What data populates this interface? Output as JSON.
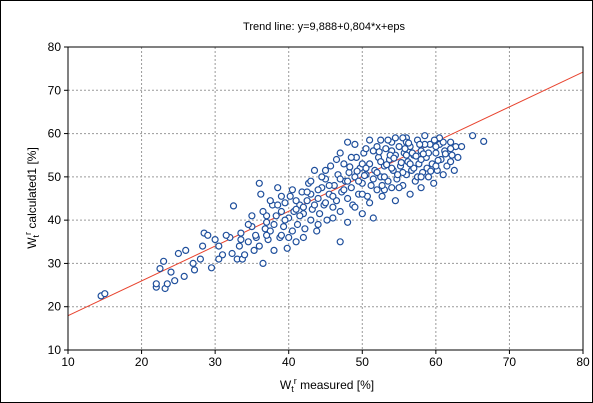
{
  "chart_data": {
    "type": "scatter",
    "title": "Trend line: y=9,888+0,804*x+eps",
    "xlabel": {
      "main": "W",
      "sub": "t",
      "sup": "r",
      "rest": " measured [%]"
    },
    "ylabel": {
      "main": "W",
      "sub": "t",
      "sup": "r",
      "rest": " calculated1 [%]"
    },
    "xlim": [
      10,
      80
    ],
    "ylim": [
      10,
      80
    ],
    "xticks": [
      "10",
      "20",
      "30",
      "40",
      "50",
      "60",
      "70",
      "80"
    ],
    "yticks": [
      "10",
      "20",
      "30",
      "40",
      "50",
      "60",
      "70",
      "80"
    ],
    "grid": true,
    "legend": "none",
    "trend_line": {
      "intercept": 9.888,
      "slope": 0.804,
      "color": "#e8432e"
    },
    "marker_color": "#1f4f9c",
    "series": [
      {
        "points": [
          [
            14.5,
            22.5
          ],
          [
            15.0,
            23.0
          ],
          [
            22.0,
            24.5
          ],
          [
            22.0,
            25.3
          ],
          [
            22.5,
            28.8
          ],
          [
            23.0,
            30.5
          ],
          [
            23.2,
            24.2
          ],
          [
            23.5,
            25.3
          ],
          [
            24.0,
            28.0
          ],
          [
            24.5,
            26.0
          ],
          [
            25.0,
            32.3
          ],
          [
            25.8,
            27.0
          ],
          [
            26.0,
            33.0
          ],
          [
            27.0,
            30.0
          ],
          [
            27.2,
            28.5
          ],
          [
            28.0,
            31.0
          ],
          [
            28.3,
            34.0
          ],
          [
            28.5,
            37.0
          ],
          [
            29.0,
            36.5
          ],
          [
            29.5,
            29.0
          ],
          [
            30.0,
            35.5
          ],
          [
            30.5,
            34.0
          ],
          [
            31.0,
            32.0
          ],
          [
            32.0,
            36.0
          ],
          [
            32.3,
            32.3
          ],
          [
            32.5,
            43.3
          ],
          [
            33.0,
            31.0
          ],
          [
            33.3,
            34.0
          ],
          [
            33.5,
            37.0
          ],
          [
            33.7,
            31.0
          ],
          [
            34.0,
            32.0
          ],
          [
            34.5,
            35.0
          ],
          [
            35.0,
            38.5
          ],
          [
            35.3,
            33.0
          ],
          [
            35.6,
            36.0
          ],
          [
            36.0,
            48.5
          ],
          [
            36.2,
            46.0
          ],
          [
            36.5,
            30.0
          ],
          [
            36.8,
            38.0
          ],
          [
            37.0,
            41.0
          ],
          [
            37.2,
            35.5
          ],
          [
            37.5,
            37.5
          ],
          [
            37.8,
            43.5
          ],
          [
            38.0,
            39.0
          ],
          [
            38.3,
            41.0
          ],
          [
            38.5,
            47.5
          ],
          [
            38.8,
            36.0
          ],
          [
            39.0,
            42.0
          ],
          [
            39.3,
            38.5
          ],
          [
            39.5,
            44.0
          ],
          [
            39.8,
            33.5
          ],
          [
            40.0,
            40.5
          ],
          [
            40.2,
            45.5
          ],
          [
            40.5,
            37.5
          ],
          [
            40.7,
            42.0
          ],
          [
            41.0,
            35.0
          ],
          [
            41.2,
            39.0
          ],
          [
            41.5,
            43.5
          ],
          [
            41.8,
            46.5
          ],
          [
            42.0,
            41.5
          ],
          [
            42.2,
            38.0
          ],
          [
            42.5,
            44.5
          ],
          [
            42.7,
            48.5
          ],
          [
            43.0,
            40.0
          ],
          [
            43.2,
            42.5
          ],
          [
            43.5,
            51.5
          ],
          [
            43.8,
            37.5
          ],
          [
            44.0,
            45.0
          ],
          [
            44.2,
            41.5
          ],
          [
            44.5,
            47.5
          ],
          [
            44.8,
            43.5
          ],
          [
            45.0,
            49.5
          ],
          [
            45.2,
            40.0
          ],
          [
            45.5,
            46.0
          ],
          [
            45.7,
            52.5
          ],
          [
            46.0,
            43.0
          ],
          [
            46.2,
            48.0
          ],
          [
            46.5,
            44.5
          ],
          [
            46.7,
            50.5
          ],
          [
            47.0,
            35.0
          ],
          [
            47.0,
            42.0
          ],
          [
            47.2,
            46.5
          ],
          [
            47.5,
            53.0
          ],
          [
            47.7,
            49.0
          ],
          [
            48.0,
            45.0
          ],
          [
            48.0,
            58.0
          ],
          [
            48.2,
            51.0
          ],
          [
            48.5,
            47.5
          ],
          [
            48.7,
            43.5
          ],
          [
            49.0,
            50.0
          ],
          [
            49.2,
            54.5
          ],
          [
            49.5,
            46.0
          ],
          [
            49.7,
            52.0
          ],
          [
            50.0,
            48.5
          ],
          [
            50.0,
            41.5
          ],
          [
            50.2,
            55.5
          ],
          [
            50.5,
            50.5
          ],
          [
            50.7,
            45.5
          ],
          [
            51.0,
            53.0
          ],
          [
            51.2,
            48.0
          ],
          [
            51.5,
            56.0
          ],
          [
            51.5,
            40.5
          ],
          [
            51.7,
            51.5
          ],
          [
            52.0,
            47.0
          ],
          [
            52.2,
            54.5
          ],
          [
            52.5,
            58.5
          ],
          [
            52.5,
            50.0
          ],
          [
            52.7,
            45.5
          ],
          [
            53.0,
            52.5
          ],
          [
            53.2,
            56.5
          ],
          [
            53.5,
            49.0
          ],
          [
            53.7,
            54.0
          ],
          [
            54.0,
            47.5
          ],
          [
            54.0,
            58.0
          ],
          [
            54.2,
            51.5
          ],
          [
            54.5,
            55.0
          ],
          [
            54.5,
            44.5
          ],
          [
            54.7,
            49.5
          ],
          [
            55.0,
            57.0
          ],
          [
            55.2,
            52.5
          ],
          [
            55.5,
            48.0
          ],
          [
            55.7,
            55.5
          ],
          [
            56.0,
            59.0
          ],
          [
            56.0,
            50.5
          ],
          [
            56.2,
            53.5
          ],
          [
            56.5,
            46.0
          ],
          [
            56.5,
            57.0
          ],
          [
            56.7,
            51.5
          ],
          [
            57.0,
            55.0
          ],
          [
            57.2,
            49.0
          ],
          [
            57.5,
            58.5
          ],
          [
            57.7,
            53.0
          ],
          [
            58.0,
            47.5
          ],
          [
            58.0,
            56.0
          ],
          [
            58.2,
            51.0
          ],
          [
            58.5,
            59.5
          ],
          [
            58.7,
            54.5
          ],
          [
            59.0,
            50.0
          ],
          [
            59.2,
            57.5
          ],
          [
            59.5,
            53.0
          ],
          [
            59.7,
            48.5
          ],
          [
            60.0,
            55.5
          ],
          [
            60.2,
            51.5
          ],
          [
            60.5,
            57.5
          ],
          [
            60.7,
            54.0
          ],
          [
            61.0,
            50.5
          ],
          [
            61.2,
            56.0
          ],
          [
            61.5,
            52.5
          ],
          [
            62.0,
            58.0
          ],
          [
            62.2,
            55.0
          ],
          [
            62.5,
            51.5
          ],
          [
            62.7,
            57.0
          ],
          [
            63.0,
            54.5
          ],
          [
            63.5,
            57.0
          ],
          [
            65.0,
            59.5
          ],
          [
            66.5,
            58.2
          ],
          [
            36.0,
            34.0
          ],
          [
            37.0,
            39.5
          ],
          [
            38.0,
            33.0
          ],
          [
            39.0,
            45.5
          ],
          [
            40.0,
            36.0
          ],
          [
            41.0,
            44.5
          ],
          [
            42.0,
            36.0
          ],
          [
            43.0,
            46.0
          ],
          [
            44.0,
            39.0
          ],
          [
            45.0,
            44.0
          ],
          [
            46.0,
            40.5
          ],
          [
            47.0,
            49.5
          ],
          [
            48.0,
            39.5
          ],
          [
            49.0,
            43.0
          ],
          [
            50.0,
            53.0
          ],
          [
            51.0,
            44.0
          ],
          [
            52.0,
            57.0
          ],
          [
            53.0,
            47.0
          ],
          [
            54.0,
            52.0
          ],
          [
            55.0,
            47.5
          ],
          [
            56.0,
            55.0
          ],
          [
            57.0,
            52.0
          ],
          [
            58.0,
            54.0
          ],
          [
            59.0,
            55.5
          ],
          [
            60.0,
            52.5
          ],
          [
            61.0,
            58.0
          ],
          [
            62.0,
            53.5
          ],
          [
            55.5,
            59.0
          ],
          [
            53.5,
            58.5
          ],
          [
            51.0,
            58.5
          ],
          [
            46.5,
            54.0
          ],
          [
            44.5,
            50.0
          ],
          [
            42.5,
            46.5
          ],
          [
            40.5,
            47.0
          ],
          [
            38.5,
            43.5
          ],
          [
            36.5,
            42.0
          ],
          [
            34.5,
            39.0
          ],
          [
            31.5,
            36.5
          ],
          [
            30.5,
            31.0
          ],
          [
            48.5,
            54.5
          ],
          [
            50.5,
            56.5
          ],
          [
            52.5,
            53.5
          ],
          [
            54.5,
            59.0
          ],
          [
            56.5,
            53.0
          ],
          [
            58.5,
            57.5
          ],
          [
            60.5,
            59.0
          ],
          [
            57.5,
            50.0
          ],
          [
            55.5,
            51.0
          ],
          [
            53.0,
            50.0
          ],
          [
            49.5,
            49.0
          ],
          [
            47.5,
            47.0
          ],
          [
            45.5,
            48.0
          ],
          [
            43.5,
            43.5
          ],
          [
            41.5,
            41.0
          ],
          [
            39.5,
            40.0
          ],
          [
            37.5,
            44.5
          ],
          [
            35.5,
            36.5
          ],
          [
            33.5,
            35.5
          ],
          [
            42.0,
            43.0
          ],
          [
            44.0,
            47.0
          ],
          [
            46.0,
            45.5
          ],
          [
            48.0,
            49.0
          ],
          [
            50.0,
            46.0
          ],
          [
            52.0,
            51.0
          ],
          [
            54.0,
            56.0
          ],
          [
            56.0,
            58.0
          ],
          [
            58.0,
            50.0
          ],
          [
            60.0,
            57.0
          ],
          [
            62.0,
            56.5
          ],
          [
            50.5,
            52.0
          ],
          [
            51.5,
            49.5
          ],
          [
            52.7,
            48.0
          ],
          [
            53.8,
            55.0
          ],
          [
            54.8,
            50.5
          ],
          [
            55.8,
            56.5
          ],
          [
            56.8,
            55.5
          ],
          [
            57.8,
            57.5
          ],
          [
            58.8,
            52.0
          ],
          [
            59.8,
            58.5
          ],
          [
            49.0,
            57.5
          ],
          [
            47.0,
            55.5
          ],
          [
            45.0,
            51.5
          ],
          [
            43.0,
            49.0
          ],
          [
            41.0,
            42.5
          ],
          [
            39.0,
            36.5
          ],
          [
            37.0,
            36.5
          ],
          [
            35.0,
            41.0
          ],
          [
            52.3,
            55.8
          ],
          [
            53.3,
            52.8
          ],
          [
            54.3,
            54.3
          ],
          [
            55.3,
            53.3
          ],
          [
            56.3,
            57.8
          ],
          [
            57.3,
            54.8
          ],
          [
            58.3,
            55.3
          ],
          [
            59.3,
            51.3
          ],
          [
            60.3,
            53.8
          ],
          [
            61.3,
            55.3
          ],
          [
            48.3,
            52.3
          ],
          [
            49.3,
            51.3
          ],
          [
            50.3,
            50.3
          ]
        ]
      }
    ]
  }
}
